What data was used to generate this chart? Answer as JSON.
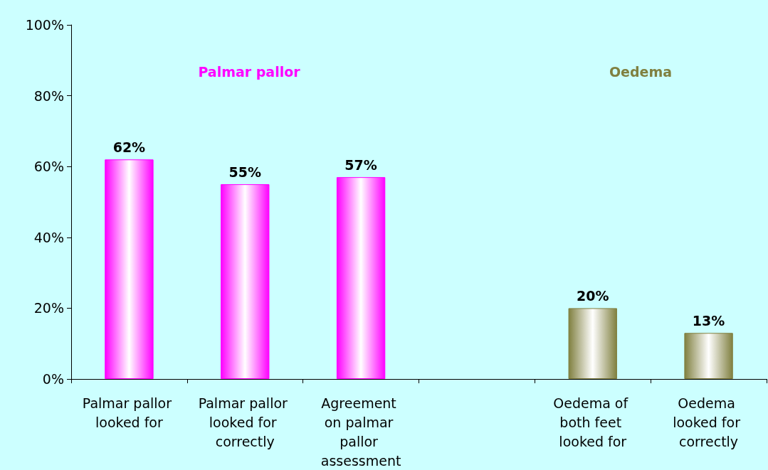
{
  "chart_data": {
    "type": "bar",
    "categories": [
      "Palmar pallor looked for",
      "Palmar pallor looked for correctly",
      "Agreement on palmar pallor assessment",
      null,
      "Oedema of both feet looked for",
      "Oedema looked for correctly"
    ],
    "values": [
      62,
      55,
      57,
      null,
      20,
      13
    ],
    "value_labels": [
      "62%",
      "55%",
      "57%",
      null,
      "20%",
      "13%"
    ],
    "colors": [
      "#ff00ff",
      "#ff00ff",
      "#ff00ff",
      "#ff00ff",
      "#808040",
      "#808040"
    ],
    "ylim": [
      0,
      100
    ],
    "yticks": [
      {
        "value": 0,
        "label": "0%"
      },
      {
        "value": 20,
        "label": "20%"
      },
      {
        "value": 40,
        "label": "40%"
      },
      {
        "value": 60,
        "label": "60%"
      },
      {
        "value": 80,
        "label": "80%"
      },
      {
        "value": 100,
        "label": "100%"
      }
    ],
    "annotations": [
      "Palmar pallor",
      "Oedema"
    ],
    "grid": false
  }
}
